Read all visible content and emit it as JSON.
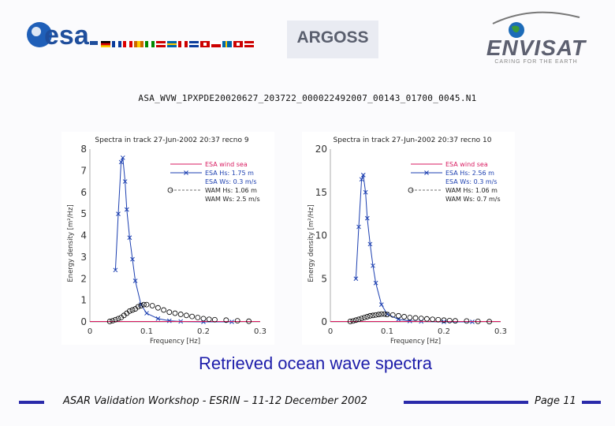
{
  "logos": {
    "esa": "esa",
    "argoss": "ARGOSS",
    "envisat": "ENVISAT",
    "envisat_tagline": "CARING FOR THE EARTH"
  },
  "filename": "ASA_WVW_1PXPDE20020627_203722_000022492007_00143_01700_0045.N1",
  "subtitle": "Retrieved ocean wave spectra",
  "footer": {
    "text": "ASAR Validation Workshop - ESRIN – 11-12 December 2002",
    "page": "Page 11"
  },
  "colors": {
    "bars": "#2a2aaa",
    "title_blue": "#1d1daa",
    "esa_series": "#1c3fb0",
    "wind_sea": "#d81b60",
    "wam": "#000000"
  },
  "chart_data": [
    {
      "type": "line",
      "title": "Spectra in track 27-Jun-2002 20:37 recno 9",
      "xlabel": "Frequency [Hz]",
      "ylabel": "Energy density [m²/Hz]",
      "xlim": [
        0,
        0.3
      ],
      "ylim": [
        0,
        8
      ],
      "xticks": [
        "0",
        "0.1",
        "0.2",
        "0.3"
      ],
      "yticks": [
        "0",
        "1",
        "2",
        "3",
        "4",
        "5",
        "6",
        "7",
        "8"
      ],
      "legend_position": "top-right",
      "legend": [
        {
          "label": "ESA wind sea",
          "style": "wind"
        },
        {
          "label": "ESA Hs: 1.75 m",
          "style": "esa"
        },
        {
          "label": "ESA Ws: 0.3 m/s",
          "style": "none"
        },
        {
          "label": "WAM Hs: 1.06 m",
          "style": "wam"
        },
        {
          "label": "WAM Ws: 2.5 m/s",
          "style": "none"
        }
      ],
      "series": [
        {
          "style": "esa",
          "x": [
            0.045,
            0.05,
            0.055,
            0.058,
            0.062,
            0.065,
            0.07,
            0.075,
            0.08,
            0.09,
            0.1,
            0.12,
            0.14,
            0.16,
            0.2,
            0.25
          ],
          "y": [
            2.4,
            5.0,
            7.4,
            7.6,
            6.5,
            5.2,
            3.9,
            2.9,
            1.9,
            0.8,
            0.4,
            0.15,
            0.05,
            0.02,
            0.0,
            0.0
          ]
        },
        {
          "style": "wind",
          "x": [
            0.0,
            0.1,
            0.2,
            0.3
          ],
          "y": [
            0.0,
            0.0,
            0.0,
            0.0
          ]
        },
        {
          "style": "wam",
          "x": [
            0.035,
            0.04,
            0.045,
            0.05,
            0.055,
            0.06,
            0.065,
            0.07,
            0.075,
            0.08,
            0.085,
            0.09,
            0.095,
            0.1,
            0.11,
            0.12,
            0.13,
            0.14,
            0.15,
            0.16,
            0.17,
            0.18,
            0.19,
            0.2,
            0.21,
            0.22,
            0.24,
            0.26,
            0.28
          ],
          "y": [
            0.02,
            0.05,
            0.1,
            0.15,
            0.2,
            0.3,
            0.4,
            0.5,
            0.55,
            0.6,
            0.7,
            0.75,
            0.8,
            0.8,
            0.75,
            0.65,
            0.55,
            0.45,
            0.4,
            0.35,
            0.3,
            0.25,
            0.2,
            0.15,
            0.12,
            0.1,
            0.08,
            0.05,
            0.03
          ]
        }
      ]
    },
    {
      "type": "line",
      "title": "Spectra in track 27-Jun-2002 20:37 recno 10",
      "xlabel": "Frequency [Hz]",
      "ylabel": "Energy density [m²/Hz]",
      "xlim": [
        0,
        0.3
      ],
      "ylim": [
        0,
        20
      ],
      "xticks": [
        "0",
        "0.1",
        "0.2",
        "0.3"
      ],
      "yticks": [
        "0",
        "5",
        "10",
        "15",
        "20"
      ],
      "legend_position": "top-right",
      "legend": [
        {
          "label": "ESA wind sea",
          "style": "wind"
        },
        {
          "label": "ESA Hs: 2.56 m",
          "style": "esa"
        },
        {
          "label": "ESA Ws: 0.3 m/s",
          "style": "none"
        },
        {
          "label": "WAM Hs: 1.06 m",
          "style": "wam"
        },
        {
          "label": "WAM Ws: 0.7 m/s",
          "style": "none"
        }
      ],
      "series": [
        {
          "style": "esa",
          "x": [
            0.045,
            0.05,
            0.055,
            0.058,
            0.062,
            0.065,
            0.07,
            0.075,
            0.08,
            0.09,
            0.1,
            0.12,
            0.14,
            0.16,
            0.2,
            0.25
          ],
          "y": [
            5.0,
            11.0,
            16.5,
            17.0,
            15.0,
            12.0,
            9.0,
            6.5,
            4.5,
            2.0,
            0.9,
            0.3,
            0.1,
            0.05,
            0.0,
            0.0
          ]
        },
        {
          "style": "wind",
          "x": [
            0.0,
            0.1,
            0.2,
            0.3
          ],
          "y": [
            0.0,
            0.0,
            0.0,
            0.0
          ]
        },
        {
          "style": "wam",
          "x": [
            0.035,
            0.04,
            0.045,
            0.05,
            0.055,
            0.06,
            0.065,
            0.07,
            0.075,
            0.08,
            0.085,
            0.09,
            0.095,
            0.1,
            0.11,
            0.12,
            0.13,
            0.14,
            0.15,
            0.16,
            0.17,
            0.18,
            0.19,
            0.2,
            0.21,
            0.22,
            0.24,
            0.26,
            0.28
          ],
          "y": [
            0.05,
            0.1,
            0.2,
            0.3,
            0.4,
            0.5,
            0.6,
            0.7,
            0.75,
            0.8,
            0.85,
            0.9,
            0.9,
            0.85,
            0.8,
            0.7,
            0.6,
            0.5,
            0.45,
            0.4,
            0.35,
            0.3,
            0.25,
            0.2,
            0.15,
            0.12,
            0.1,
            0.06,
            0.03
          ]
        }
      ]
    }
  ]
}
